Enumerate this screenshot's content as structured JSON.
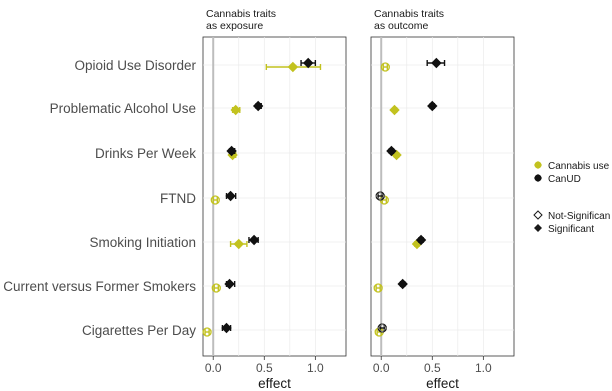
{
  "chart_data": {
    "type": "scatter",
    "title": "",
    "xlabel": "effect",
    "ylabel": "",
    "xlim": [
      -0.1,
      1.3
    ],
    "xticks": [
      "0.0",
      "0.5",
      "1.0"
    ],
    "grid": true,
    "legend_position": "right",
    "categories": [
      "Opioid Use Disorder",
      "Problematic Alcohol Use",
      "Drinks Per Week",
      "FTND",
      "Smoking Initiation",
      "Current versus Former Smokers",
      "Cigarettes Per Day"
    ],
    "legend": {
      "color_entries": [
        {
          "name": "Cannabis use",
          "color": "#c2c21f"
        },
        {
          "name": "CanUD",
          "color": "#111111"
        }
      ],
      "shape_entries": [
        {
          "name": "Not-Significan",
          "marker": "open-diamond"
        },
        {
          "name": "Significant",
          "marker": "filled-diamond"
        }
      ]
    },
    "panels": [
      {
        "title_lines": [
          "Cannabis traits",
          "as exposure"
        ],
        "series": [
          {
            "name": "Cannabis use",
            "color": "#c2c21f",
            "points": [
              {
                "category": "Opioid Use Disorder",
                "x": 0.78,
                "lo": 0.52,
                "hi": 1.05,
                "significant": true
              },
              {
                "category": "Problematic Alcohol Use",
                "x": 0.22,
                "lo": 0.19,
                "hi": 0.26,
                "significant": true
              },
              {
                "category": "Drinks Per Week",
                "x": 0.19,
                "lo": 0.17,
                "hi": 0.22,
                "significant": true
              },
              {
                "category": "FTND",
                "x": 0.02,
                "lo": 0.0,
                "hi": 0.04,
                "significant": false
              },
              {
                "category": "Smoking Initiation",
                "x": 0.25,
                "lo": 0.17,
                "hi": 0.33,
                "significant": true
              },
              {
                "category": "Current versus Former Smokers",
                "x": 0.03,
                "lo": 0.01,
                "hi": 0.05,
                "significant": false
              },
              {
                "category": "Cigarettes Per Day",
                "x": -0.06,
                "lo": -0.08,
                "hi": -0.04,
                "significant": false
              }
            ]
          },
          {
            "name": "CanUD",
            "color": "#111111",
            "points": [
              {
                "category": "Opioid Use Disorder",
                "x": 0.93,
                "lo": 0.86,
                "hi": 1.0,
                "significant": true
              },
              {
                "category": "Problematic Alcohol Use",
                "x": 0.44,
                "lo": 0.42,
                "hi": 0.47,
                "significant": true
              },
              {
                "category": "Drinks Per Week",
                "x": 0.18,
                "lo": 0.16,
                "hi": 0.21,
                "significant": true
              },
              {
                "category": "FTND",
                "x": 0.17,
                "lo": 0.13,
                "hi": 0.22,
                "significant": true
              },
              {
                "category": "Smoking Initiation",
                "x": 0.4,
                "lo": 0.35,
                "hi": 0.44,
                "significant": true
              },
              {
                "category": "Current versus Former Smokers",
                "x": 0.16,
                "lo": 0.13,
                "hi": 0.21,
                "significant": true
              },
              {
                "category": "Cigarettes Per Day",
                "x": 0.13,
                "lo": 0.09,
                "hi": 0.17,
                "significant": true
              }
            ]
          }
        ]
      },
      {
        "title_lines": [
          "Cannabis traits",
          "as outcome"
        ],
        "series": [
          {
            "name": "Cannabis use",
            "color": "#c2c21f",
            "points": [
              {
                "category": "Opioid Use Disorder",
                "x": 0.04,
                "lo": 0.02,
                "hi": 0.06,
                "significant": false
              },
              {
                "category": "Problematic Alcohol Use",
                "x": 0.13,
                "lo": 0.12,
                "hi": 0.15,
                "significant": true
              },
              {
                "category": "Drinks Per Week",
                "x": 0.15,
                "lo": 0.13,
                "hi": 0.17,
                "significant": true
              },
              {
                "category": "FTND",
                "x": 0.03,
                "lo": 0.01,
                "hi": 0.05,
                "significant": false
              },
              {
                "category": "Smoking Initiation",
                "x": 0.35,
                "lo": 0.33,
                "hi": 0.37,
                "significant": true
              },
              {
                "category": "Current versus Former Smokers",
                "x": -0.03,
                "lo": -0.05,
                "hi": -0.01,
                "significant": false
              },
              {
                "category": "Cigarettes Per Day",
                "x": -0.02,
                "lo": -0.04,
                "hi": 0.0,
                "significant": false
              }
            ]
          },
          {
            "name": "CanUD",
            "color": "#111111",
            "points": [
              {
                "category": "Opioid Use Disorder",
                "x": 0.54,
                "lo": 0.45,
                "hi": 0.62,
                "significant": true
              },
              {
                "category": "Problematic Alcohol Use",
                "x": 0.5,
                "lo": 0.48,
                "hi": 0.52,
                "significant": true
              },
              {
                "category": "Drinks Per Week",
                "x": 0.1,
                "lo": 0.08,
                "hi": 0.12,
                "significant": true
              },
              {
                "category": "FTND",
                "x": -0.01,
                "lo": -0.03,
                "hi": 0.01,
                "significant": false
              },
              {
                "category": "Smoking Initiation",
                "x": 0.39,
                "lo": 0.37,
                "hi": 0.41,
                "significant": true
              },
              {
                "category": "Current versus Former Smokers",
                "x": 0.21,
                "lo": 0.19,
                "hi": 0.23,
                "significant": true
              },
              {
                "category": "Cigarettes Per Day",
                "x": 0.01,
                "lo": -0.01,
                "hi": 0.03,
                "significant": false
              }
            ]
          }
        ]
      }
    ]
  }
}
